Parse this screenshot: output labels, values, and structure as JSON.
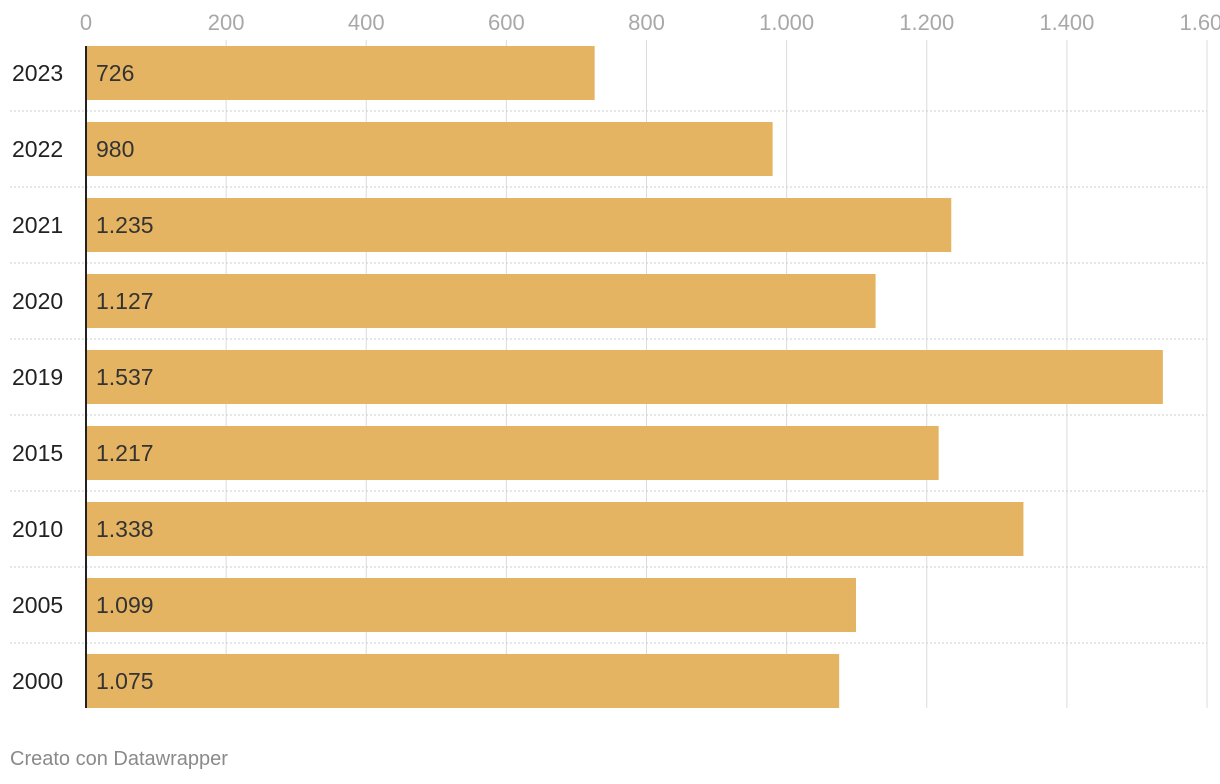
{
  "chart_data": {
    "type": "bar",
    "orientation": "horizontal",
    "categories": [
      "2023",
      "2022",
      "2021",
      "2020",
      "2019",
      "2015",
      "2010",
      "2005",
      "2000"
    ],
    "values": [
      726,
      980,
      1235,
      1127,
      1537,
      1217,
      1338,
      1099,
      1075
    ],
    "value_labels": [
      "726",
      "980",
      "1.235",
      "1.127",
      "1.537",
      "1.217",
      "1.338",
      "1.099",
      "1.075"
    ],
    "x_ticks": [
      0,
      200,
      400,
      600,
      800,
      1000,
      1200,
      1400,
      1600
    ],
    "x_tick_labels": [
      "0",
      "200",
      "400",
      "600",
      "800",
      "1.000",
      "1.200",
      "1.400",
      "1.600"
    ],
    "xlim": [
      0,
      1600
    ],
    "title": "",
    "xlabel": "",
    "ylabel": "",
    "grid": true,
    "legend": "none",
    "bar_color": "#e5b462",
    "credit": "Creato con Datawrapper"
  }
}
